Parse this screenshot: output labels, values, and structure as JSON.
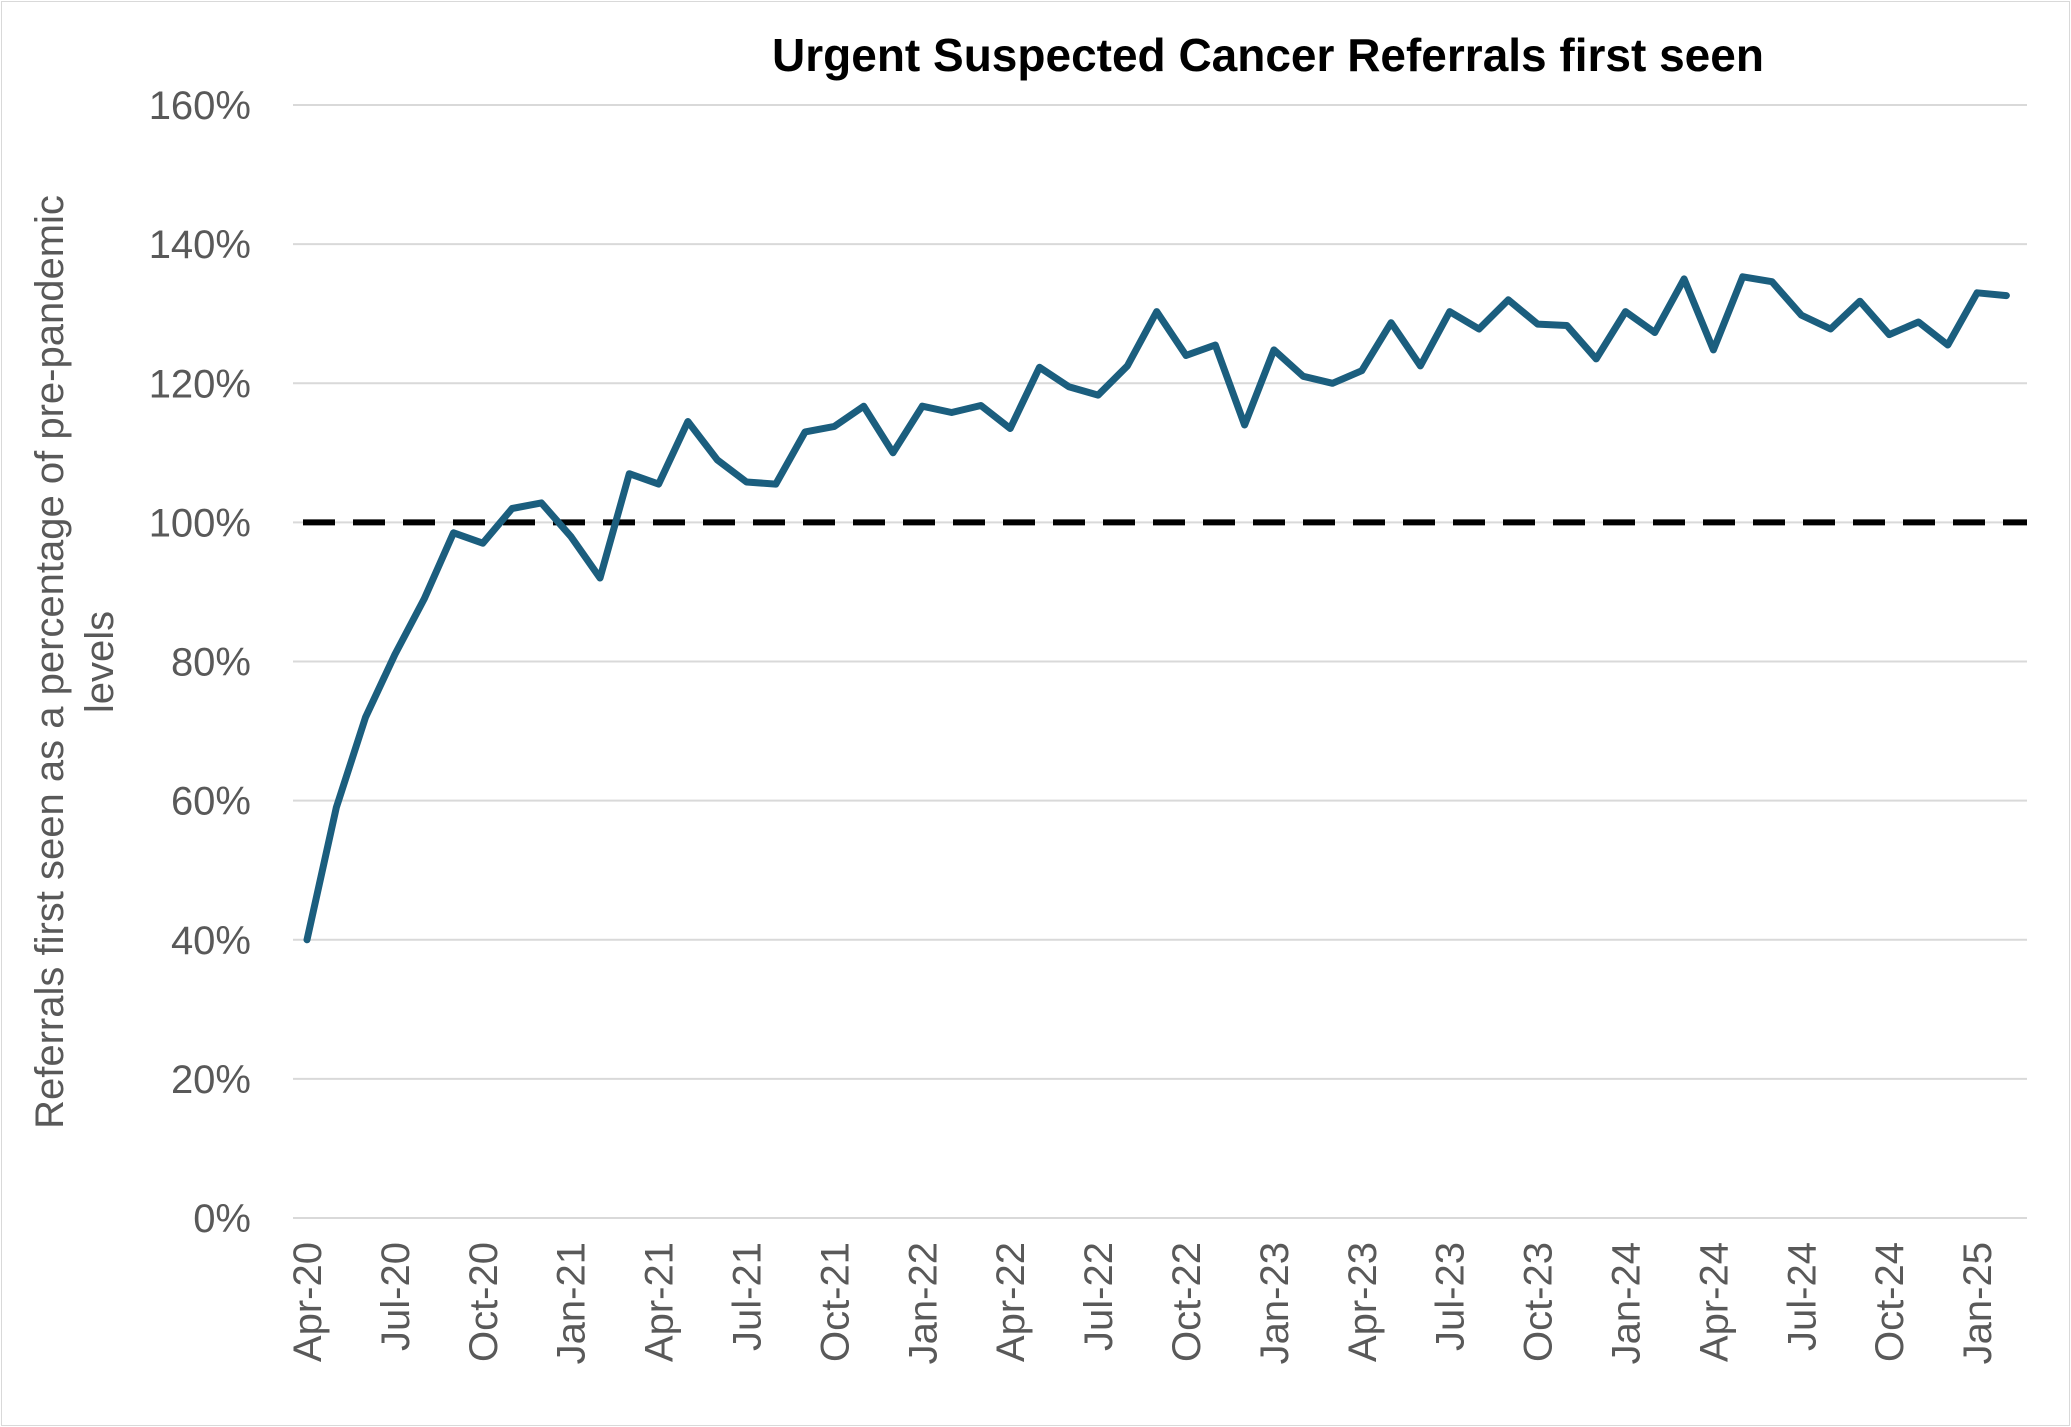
{
  "chart_data": {
    "type": "line",
    "title": "Urgent Suspected Cancer Referrals first seen",
    "xlabel": "",
    "ylabel": "Referrals first seen as a percentage of pre-pandemic levels",
    "ylabel_lines": [
      "Referrals first seen as a percentage of pre-pandemic",
      "levels"
    ],
    "ylim": [
      0,
      160
    ],
    "yticks": [
      0,
      20,
      40,
      60,
      80,
      100,
      120,
      140,
      160
    ],
    "ytick_labels": [
      "0%",
      "20%",
      "40%",
      "60%",
      "80%",
      "100%",
      "120%",
      "140%",
      "160%"
    ],
    "grid": true,
    "x": [
      "Apr-20",
      "May-20",
      "Jun-20",
      "Jul-20",
      "Aug-20",
      "Sep-20",
      "Oct-20",
      "Nov-20",
      "Dec-20",
      "Jan-21",
      "Feb-21",
      "Mar-21",
      "Apr-21",
      "May-21",
      "Jun-21",
      "Jul-21",
      "Aug-21",
      "Sep-21",
      "Oct-21",
      "Nov-21",
      "Dec-21",
      "Jan-22",
      "Feb-22",
      "Mar-22",
      "Apr-22",
      "May-22",
      "Jun-22",
      "Jul-22",
      "Aug-22",
      "Sep-22",
      "Oct-22",
      "Nov-22",
      "Dec-22",
      "Jan-23",
      "Feb-23",
      "Mar-23",
      "Apr-23",
      "May-23",
      "Jun-23",
      "Jul-23",
      "Aug-23",
      "Sep-23",
      "Oct-23",
      "Nov-23",
      "Dec-23",
      "Jan-24",
      "Feb-24",
      "Mar-24",
      "Apr-24",
      "May-24",
      "Jun-24",
      "Jul-24",
      "Aug-24",
      "Sep-24",
      "Oct-24",
      "Nov-24",
      "Dec-24",
      "Jan-25",
      "Feb-25"
    ],
    "xtick_labels": [
      "Apr-20",
      "Jul-20",
      "Oct-20",
      "Jan-21",
      "Apr-21",
      "Jul-21",
      "Oct-21",
      "Jan-22",
      "Apr-22",
      "Jul-22",
      "Oct-22",
      "Jan-23",
      "Apr-23",
      "Jul-23",
      "Oct-23",
      "Jan-24",
      "Apr-24",
      "Jul-24",
      "Oct-24",
      "Jan-25"
    ],
    "series": [
      {
        "color": "#1b5e7e",
        "values": [
          40,
          59,
          72,
          81,
          89,
          98.5,
          97,
          102,
          102.8,
          98,
          92,
          107,
          105.5,
          114.5,
          109,
          105.8,
          105.5,
          113,
          113.8,
          116.7,
          110,
          116.7,
          115.8,
          116.8,
          113.5,
          122.3,
          119.5,
          118.3,
          122.5,
          130.3,
          124,
          125.5,
          114,
          124.8,
          121,
          120,
          121.8,
          128.7,
          122.5,
          130.3,
          127.8,
          132,
          128.5,
          128.3,
          123.5,
          130.3,
          127.3,
          135,
          124.8,
          135.3,
          134.6,
          129.8,
          127.8,
          131.8,
          127,
          128.8,
          125.5,
          133,
          132.6
        ]
      }
    ],
    "reference_line": {
      "value": 100,
      "color": "#000000",
      "style": "dashed"
    }
  }
}
